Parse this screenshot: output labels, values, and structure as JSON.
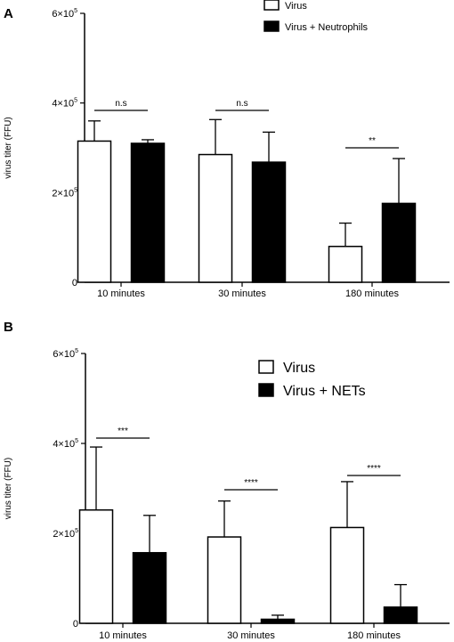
{
  "chart_data": [
    {
      "panel": "A",
      "type": "bar",
      "ylabel": "virus titer (FFU)",
      "yticks": [
        "0",
        "2×10",
        "4×10",
        "6×10"
      ],
      "ytick_exponent": "5",
      "ylim": [
        0,
        600000
      ],
      "categories": [
        "10 minutes",
        "30 minutes",
        "180 minutes"
      ],
      "series": [
        {
          "name": "Virus",
          "fill": "#ffffff",
          "values": [
            315000,
            285000,
            80000
          ],
          "errors": [
            45000,
            78000,
            52000
          ]
        },
        {
          "name": "Virus + Neutrophils",
          "fill": "#000000",
          "values": [
            310000,
            268000,
            176000
          ],
          "errors": [
            8000,
            67000,
            100000
          ]
        }
      ],
      "significance": [
        "n.s",
        "n.s",
        "**"
      ],
      "legend_position": "top-right"
    },
    {
      "panel": "B",
      "type": "bar",
      "ylabel": "virus titer (FFU)",
      "yticks": [
        "0",
        "2×10",
        "4×10",
        "6×10"
      ],
      "ytick_exponent": "5",
      "ylim": [
        0,
        600000
      ],
      "categories": [
        "10 minutes",
        "30 minutes",
        "180 minutes"
      ],
      "series": [
        {
          "name": "Virus",
          "fill": "#ffffff",
          "values": [
            252000,
            192000,
            213000
          ],
          "errors": [
            140000,
            80000,
            102000
          ]
        },
        {
          "name": "Virus + NETs",
          "fill": "#000000",
          "values": [
            157000,
            9000,
            36000
          ],
          "errors": [
            83000,
            9000,
            50000
          ]
        }
      ],
      "significance": [
        "***",
        "****",
        "****"
      ],
      "legend_position": "top-right"
    }
  ]
}
